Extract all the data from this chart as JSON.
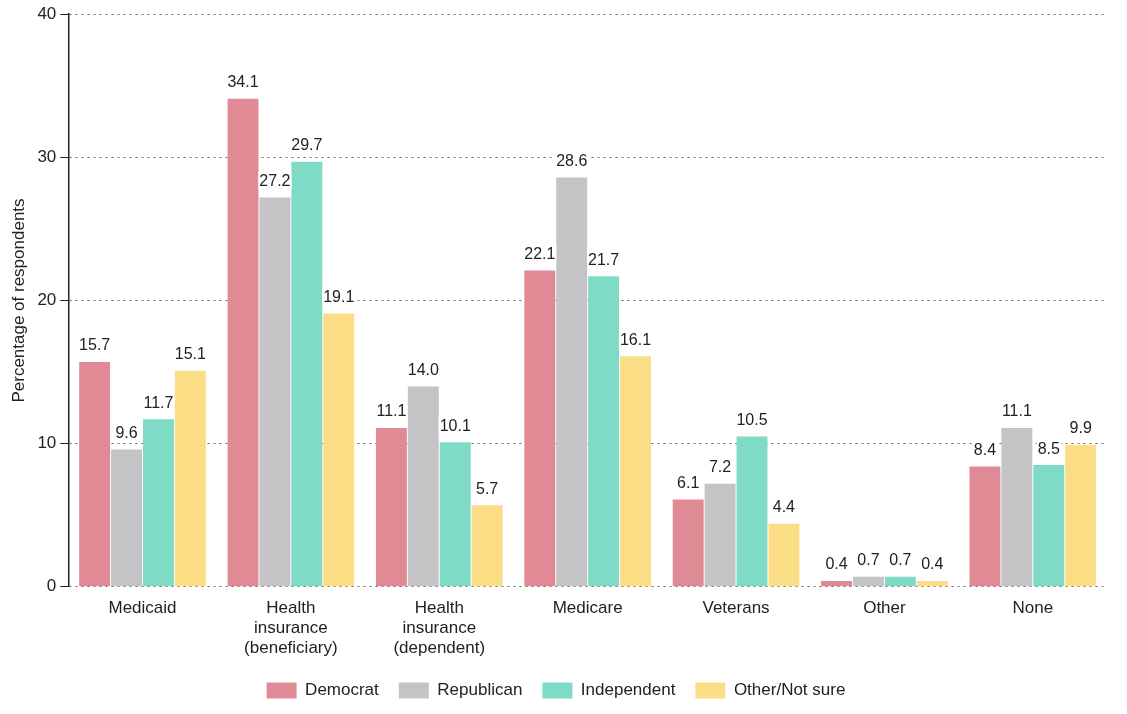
{
  "chart_data": {
    "type": "bar",
    "ylabel": "Percentage of respondents",
    "categories": [
      "Medicaid",
      "Health insurance (beneficiary)",
      "Health insurance (dependent)",
      "Medicare",
      "Veterans",
      "Other",
      "None"
    ],
    "series": [
      {
        "name": "Democrat",
        "color": "#e08a96",
        "values": [
          15.7,
          34.1,
          11.1,
          22.1,
          6.1,
          0.4,
          8.4
        ],
        "value_labels": [
          "15.7",
          "34.1",
          "11.1",
          "22.1",
          "6.1",
          "0.4",
          "8.4"
        ]
      },
      {
        "name": "Republican",
        "color": "#c4c4c6",
        "values": [
          9.6,
          27.2,
          14.0,
          28.6,
          7.2,
          0.7,
          11.1
        ],
        "value_labels": [
          "9.6",
          "27.2",
          "14.0",
          "28.6",
          "7.2",
          "0.7",
          "11.1"
        ]
      },
      {
        "name": "Independent",
        "color": "#80dbc6",
        "values": [
          11.7,
          29.7,
          10.1,
          21.7,
          10.5,
          0.7,
          8.5
        ],
        "value_labels": [
          "11.7",
          "29.7",
          "10.1",
          "21.7",
          "10.5",
          "0.7",
          "8.5"
        ]
      },
      {
        "name": "Other/Not sure",
        "color": "#fbdd86",
        "values": [
          15.1,
          19.1,
          5.7,
          16.1,
          4.4,
          0.4,
          9.9
        ],
        "value_labels": [
          "15.1",
          "19.1",
          "5.7",
          "16.1",
          "4.4",
          "0.4",
          "9.9"
        ]
      }
    ],
    "ylim": [
      0,
      40
    ],
    "yticks": [
      0,
      10,
      20,
      30,
      40
    ],
    "grid": "y",
    "legend": "bottom"
  }
}
